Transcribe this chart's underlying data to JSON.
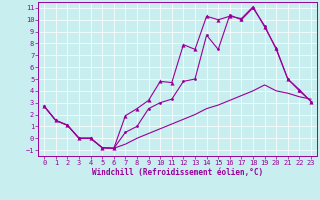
{
  "xlabel": "Windchill (Refroidissement éolien,°C)",
  "bg_color": "#c8eef0",
  "line_color": "#990099",
  "grid_color": "#ffffff",
  "xlim": [
    -0.5,
    23.5
  ],
  "ylim": [
    -1.5,
    11.5
  ],
  "xticks": [
    0,
    1,
    2,
    3,
    4,
    5,
    6,
    7,
    8,
    9,
    10,
    11,
    12,
    13,
    14,
    15,
    16,
    17,
    18,
    19,
    20,
    21,
    22,
    23
  ],
  "yticks": [
    -1,
    0,
    1,
    2,
    3,
    4,
    5,
    6,
    7,
    8,
    9,
    10,
    11
  ],
  "line_tri_x": [
    0,
    1,
    2,
    3,
    4,
    5,
    6,
    7,
    8,
    9,
    10,
    11,
    12,
    13,
    14,
    15,
    16,
    17,
    18,
    19,
    20,
    21,
    22,
    23
  ],
  "line_tri_y": [
    2.7,
    1.5,
    1.1,
    0.0,
    0.0,
    -0.8,
    -0.85,
    1.9,
    2.5,
    3.2,
    4.8,
    4.7,
    7.9,
    7.5,
    10.3,
    10.0,
    10.3,
    10.1,
    11.1,
    9.4,
    7.6,
    5.0,
    4.1,
    3.1
  ],
  "line_dot_x": [
    0,
    1,
    2,
    3,
    4,
    5,
    6,
    7,
    8,
    9,
    10,
    11,
    12,
    13,
    14,
    15,
    16,
    17,
    18,
    19,
    20,
    21,
    22,
    23
  ],
  "line_dot_y": [
    2.7,
    1.5,
    1.1,
    0.0,
    0.0,
    -0.8,
    -0.85,
    0.5,
    1.0,
    2.5,
    3.0,
    3.3,
    4.8,
    5.0,
    8.7,
    7.5,
    10.4,
    10.0,
    11.0,
    9.5,
    7.5,
    5.0,
    4.0,
    3.1
  ],
  "line_straight_x": [
    0,
    1,
    2,
    3,
    4,
    5,
    6,
    7,
    8,
    9,
    10,
    11,
    12,
    13,
    14,
    15,
    16,
    17,
    18,
    19,
    20,
    21,
    22,
    23
  ],
  "line_straight_y": [
    2.7,
    1.5,
    1.1,
    0.0,
    0.0,
    -0.8,
    -0.85,
    -0.5,
    0.0,
    0.4,
    0.8,
    1.2,
    1.6,
    2.0,
    2.5,
    2.8,
    3.2,
    3.6,
    4.0,
    4.5,
    4.0,
    3.8,
    3.5,
    3.3
  ]
}
